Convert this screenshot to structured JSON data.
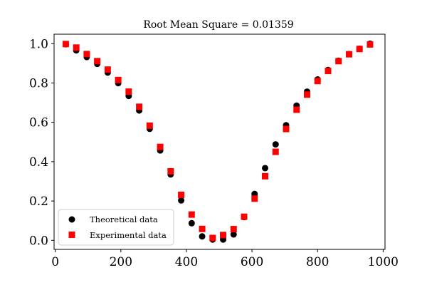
{
  "chart_data": {
    "type": "scatter",
    "title": "Root Mean Square = 0.01359",
    "xlabel": "",
    "ylabel": "",
    "xlim": [
      -3.6,
      1005.7
    ],
    "ylim": [
      -0.046,
      1.048
    ],
    "xticks": [
      0,
      200,
      400,
      600,
      800,
      1000
    ],
    "yticks": [
      0.0,
      0.2,
      0.4,
      0.6,
      0.8,
      1.0
    ],
    "xtick_labels": [
      "0",
      "200",
      "400",
      "600",
      "800",
      "1000"
    ],
    "ytick_labels": [
      "0.0",
      "0.2",
      "0.4",
      "0.6",
      "0.8",
      "1.0"
    ],
    "grid": false,
    "legend_position": "lower-left",
    "series": [
      {
        "name": "Theoretical data",
        "marker": "circle",
        "color": "#000000",
        "x": [
          32,
          64,
          96,
          128,
          160,
          192,
          224,
          256,
          288,
          320,
          352,
          384,
          416,
          448,
          480,
          512,
          544,
          576,
          608,
          640,
          672,
          704,
          736,
          768,
          800,
          832,
          864,
          896,
          928,
          960
        ],
        "y": [
          0.997,
          0.966,
          0.932,
          0.897,
          0.853,
          0.799,
          0.734,
          0.66,
          0.567,
          0.457,
          0.335,
          0.203,
          0.087,
          0.02,
          0.004,
          0.004,
          0.03,
          0.118,
          0.236,
          0.367,
          0.488,
          0.585,
          0.685,
          0.756,
          0.818,
          0.866,
          0.913,
          0.947,
          0.974,
          1.0
        ]
      },
      {
        "name": "Experimental data",
        "marker": "square",
        "color": "#ff0000",
        "x": [
          32,
          64,
          96,
          128,
          160,
          192,
          224,
          256,
          288,
          320,
          352,
          384,
          416,
          448,
          480,
          512,
          544,
          576,
          608,
          640,
          672,
          704,
          736,
          768,
          800,
          832,
          864,
          896,
          928,
          960
        ],
        "y": [
          0.998,
          0.98,
          0.947,
          0.911,
          0.868,
          0.815,
          0.756,
          0.679,
          0.583,
          0.475,
          0.351,
          0.231,
          0.131,
          0.058,
          0.012,
          0.027,
          0.057,
          0.12,
          0.212,
          0.326,
          0.45,
          0.566,
          0.664,
          0.741,
          0.81,
          0.861,
          0.911,
          0.946,
          0.973,
          0.996
        ]
      }
    ]
  }
}
